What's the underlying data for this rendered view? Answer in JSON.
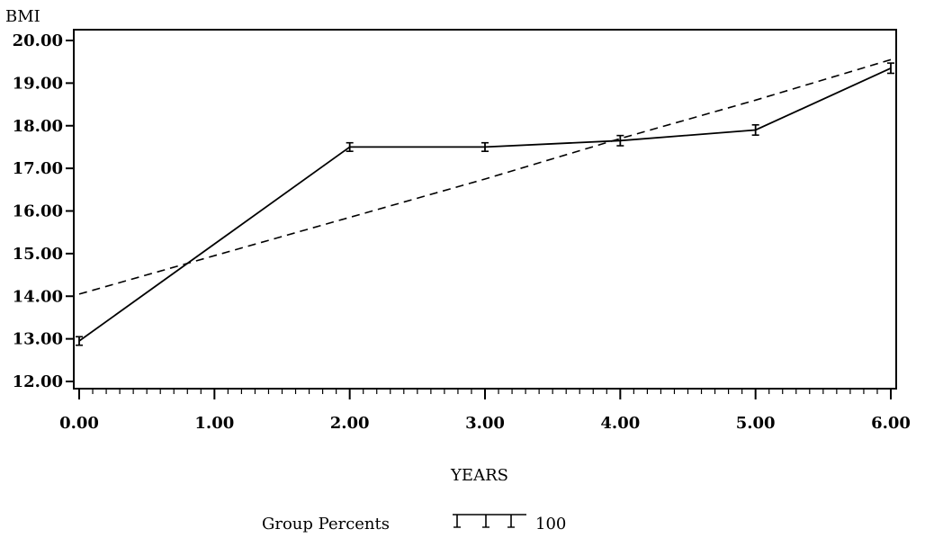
{
  "chart_data": {
    "type": "line",
    "title": "",
    "ylabel": "BMI",
    "xlabel": "YEARS",
    "xlim": [
      0,
      6
    ],
    "ylim": [
      12,
      20
    ],
    "x_ticks": [
      0,
      1,
      2,
      3,
      4,
      5,
      6
    ],
    "x_tick_labels": [
      "0.00",
      "1.00",
      "2.00",
      "3.00",
      "4.00",
      "5.00",
      "6.00"
    ],
    "y_ticks": [
      12,
      13,
      14,
      15,
      16,
      17,
      18,
      19,
      20
    ],
    "y_tick_labels": [
      "12.00",
      "13.00",
      "14.00",
      "15.00",
      "16.00",
      "17.00",
      "18.00",
      "19.00",
      "20.00"
    ],
    "grid": false,
    "series": [
      {
        "style": "solid",
        "x": [
          0,
          2,
          3,
          4,
          5,
          6
        ],
        "y": [
          12.95,
          17.5,
          17.5,
          17.65,
          17.9,
          19.35
        ],
        "error": [
          0.1,
          0.1,
          0.1,
          0.12,
          0.12,
          0.12
        ]
      },
      {
        "style": "dashed",
        "x": [
          0,
          1,
          2,
          3,
          4,
          5,
          6
        ],
        "y": [
          14.05,
          14.95,
          15.85,
          16.75,
          17.7,
          18.6,
          19.55
        ]
      }
    ],
    "legend": {
      "label": "Group Percents",
      "value": "100",
      "position": "bottom"
    }
  }
}
